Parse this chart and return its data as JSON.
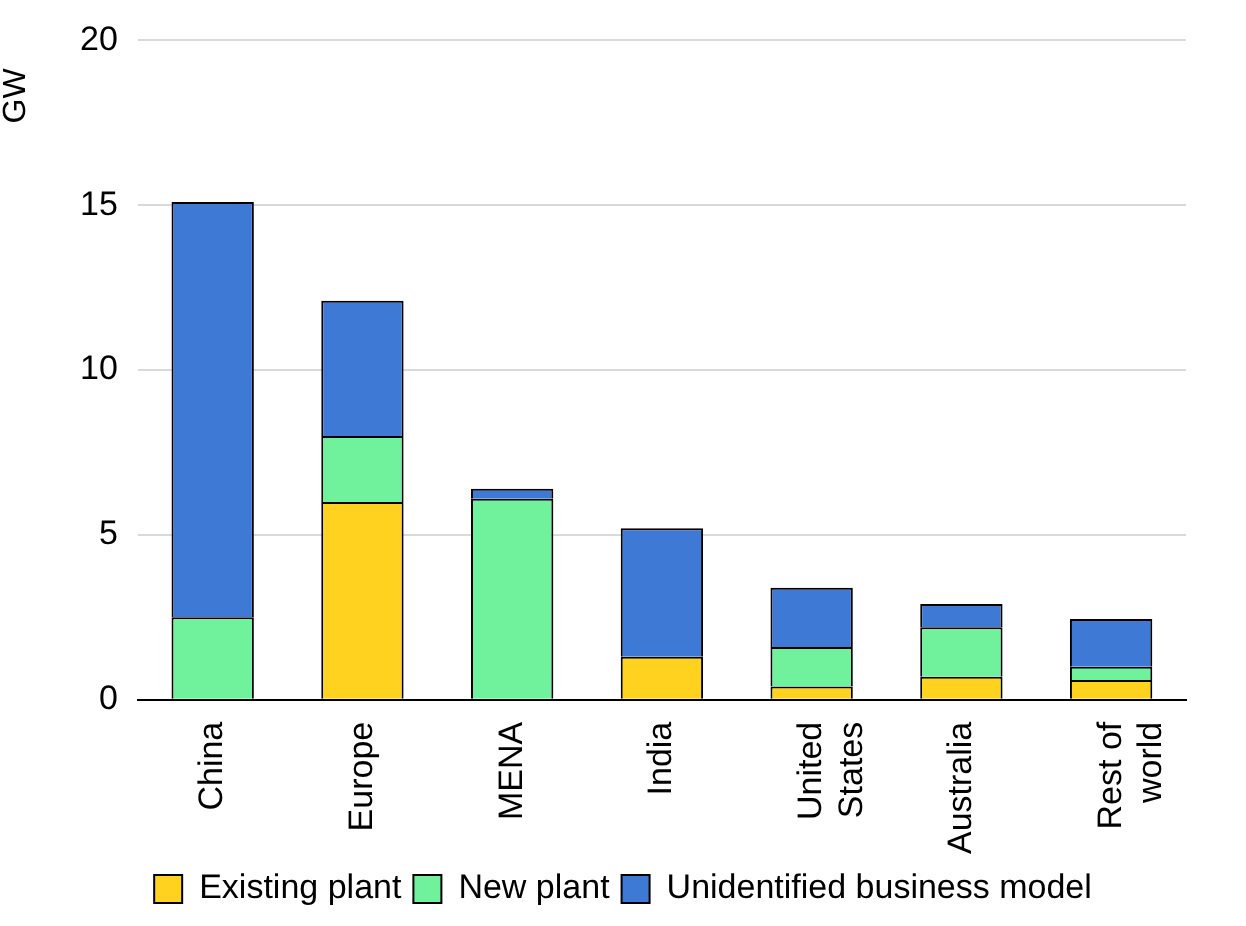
{
  "chart_data": {
    "type": "bar",
    "ylabel": "GW",
    "categories": [
      "China",
      "Europe",
      "MENA",
      "India",
      "United States",
      "Australia",
      "Rest of world"
    ],
    "series": [
      {
        "name": "Existing plant",
        "color": "#ffd21f",
        "values": [
          0,
          6.0,
          0,
          1.3,
          0.4,
          0.7,
          0.6
        ]
      },
      {
        "name": "New plant",
        "color": "#6ff29b",
        "values": [
          2.5,
          2.0,
          6.1,
          0,
          1.2,
          1.5,
          0.4
        ]
      },
      {
        "name": "Unidentified business model",
        "color": "#3f79d6",
        "values": [
          12.6,
          4.1,
          0.3,
          3.9,
          1.8,
          0.7,
          1.45
        ]
      }
    ],
    "stacked": true,
    "ylim": [
      0,
      20
    ],
    "yticks": [
      0,
      5,
      10,
      15,
      20
    ],
    "grid": "y",
    "legend": "bottom"
  }
}
